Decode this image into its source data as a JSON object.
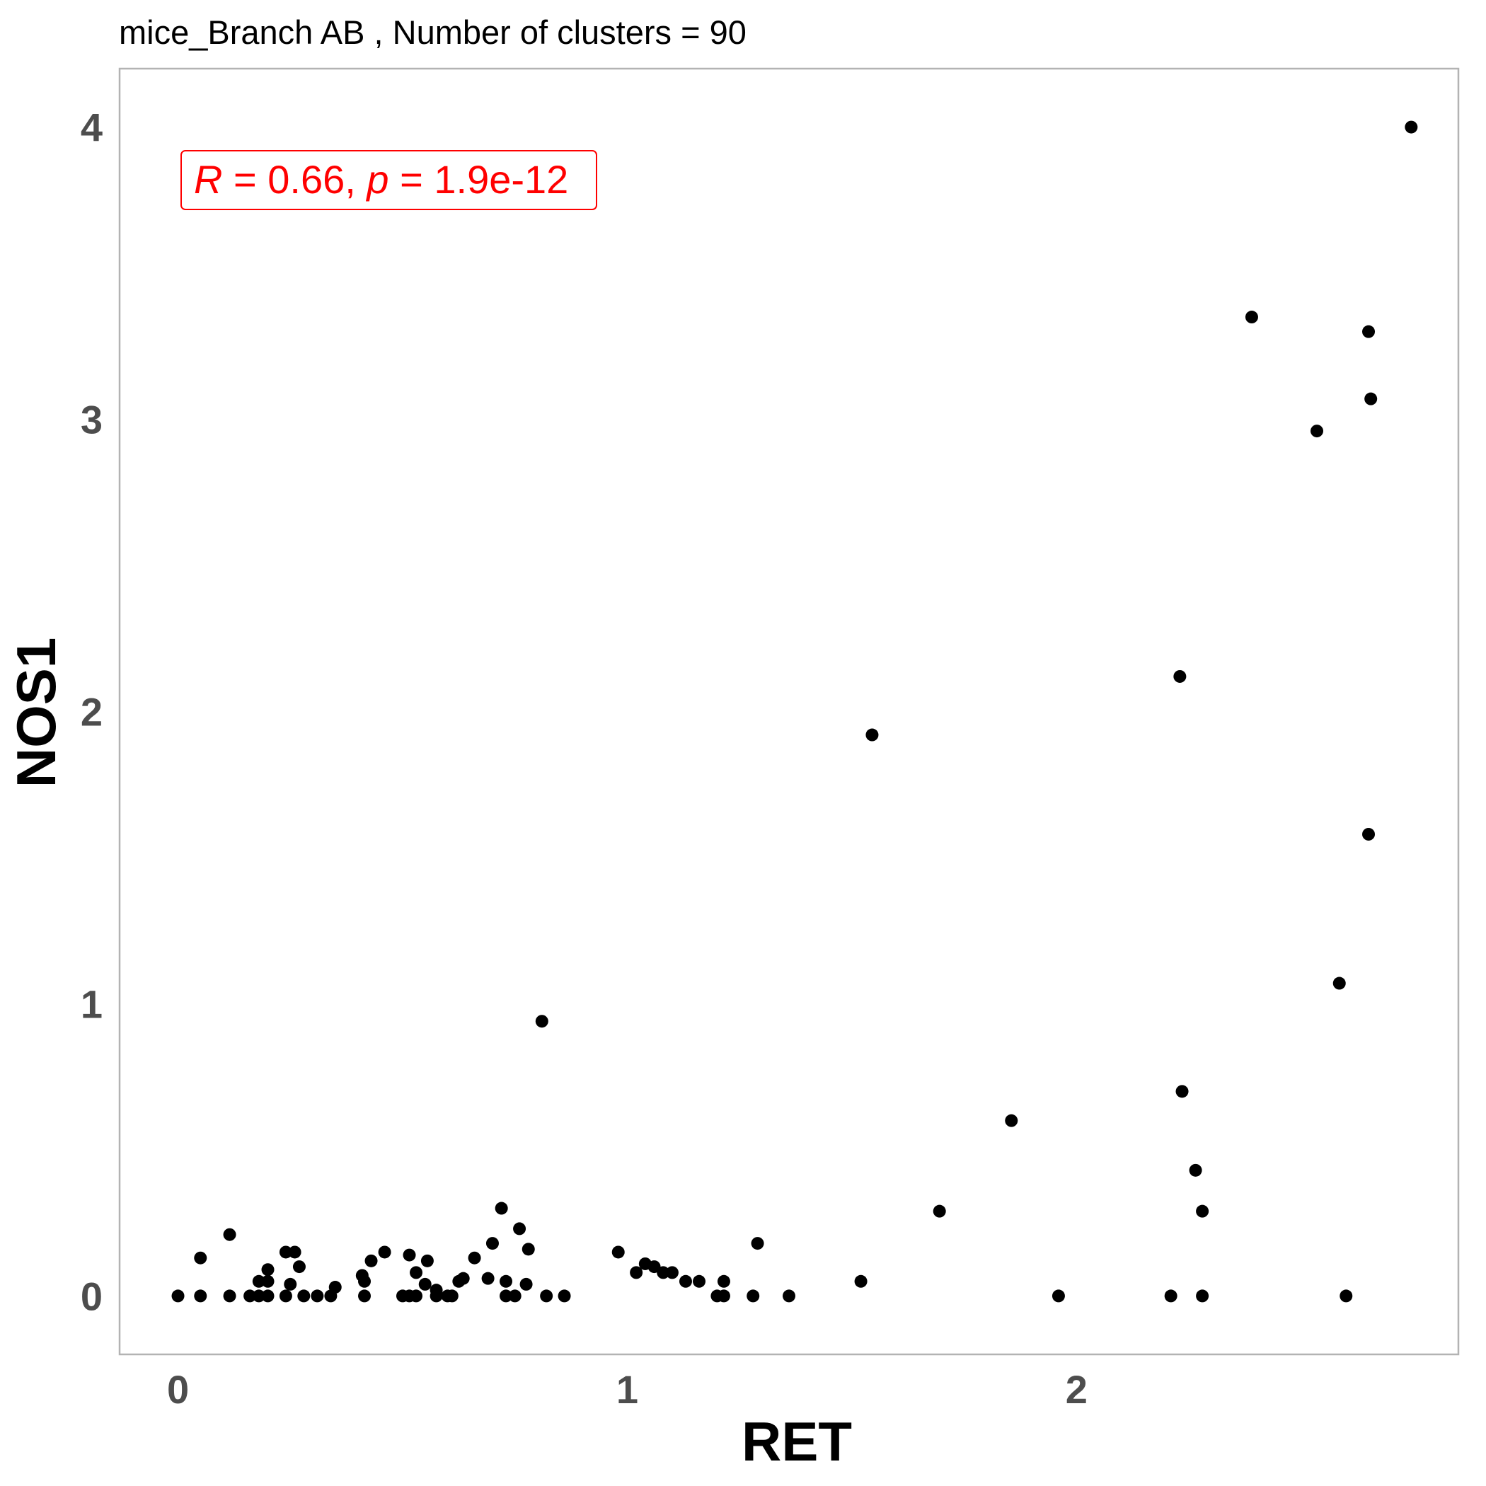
{
  "chart_data": {
    "type": "scatter",
    "title": "mice_Branch AB , Number of clusters =  90",
    "xlabel": "RET",
    "ylabel": "NOS1",
    "xlim": [
      -0.13,
      2.85
    ],
    "ylim": [
      -0.2,
      4.2
    ],
    "x_ticks": [
      0,
      1,
      2
    ],
    "y_ticks": [
      0,
      1,
      2,
      3,
      4
    ],
    "grid": false,
    "annotation": {
      "r_symbol": "R",
      "r_text": " = 0.66, ",
      "p_symbol": "p",
      "p_text": " = 1.9e-12",
      "color": "#ff0000"
    },
    "point_color": "#000000",
    "points": [
      [
        0.0,
        0.0
      ],
      [
        0.05,
        0.0
      ],
      [
        0.05,
        0.13
      ],
      [
        0.115,
        0.0
      ],
      [
        0.115,
        0.21
      ],
      [
        0.16,
        0.0
      ],
      [
        0.18,
        0.0
      ],
      [
        0.18,
        0.05
      ],
      [
        0.2,
        0.0
      ],
      [
        0.2,
        0.05
      ],
      [
        0.2,
        0.09
      ],
      [
        0.24,
        0.0
      ],
      [
        0.24,
        0.15
      ],
      [
        0.25,
        0.04
      ],
      [
        0.26,
        0.15
      ],
      [
        0.27,
        0.1
      ],
      [
        0.28,
        0.0
      ],
      [
        0.31,
        0.0
      ],
      [
        0.34,
        0.0
      ],
      [
        0.35,
        0.03
      ],
      [
        0.41,
        0.07
      ],
      [
        0.415,
        0.0
      ],
      [
        0.415,
        0.05
      ],
      [
        0.43,
        0.12
      ],
      [
        0.46,
        0.15
      ],
      [
        0.5,
        0.0
      ],
      [
        0.515,
        0.0
      ],
      [
        0.515,
        0.14
      ],
      [
        0.53,
        0.0
      ],
      [
        0.53,
        0.08
      ],
      [
        0.55,
        0.04
      ],
      [
        0.555,
        0.12
      ],
      [
        0.575,
        0.0
      ],
      [
        0.575,
        0.02
      ],
      [
        0.6,
        0.0
      ],
      [
        0.61,
        0.0
      ],
      [
        0.625,
        0.05
      ],
      [
        0.635,
        0.06
      ],
      [
        0.66,
        0.13
      ],
      [
        0.69,
        0.06
      ],
      [
        0.7,
        0.18
      ],
      [
        0.72,
        0.3
      ],
      [
        0.73,
        0.0
      ],
      [
        0.73,
        0.05
      ],
      [
        0.75,
        0.0
      ],
      [
        0.76,
        0.23
      ],
      [
        0.775,
        0.04
      ],
      [
        0.78,
        0.16
      ],
      [
        0.81,
        0.94
      ],
      [
        0.82,
        0.0
      ],
      [
        0.86,
        0.0
      ],
      [
        0.98,
        0.15
      ],
      [
        1.02,
        0.08
      ],
      [
        1.04,
        0.11
      ],
      [
        1.06,
        0.1
      ],
      [
        1.08,
        0.08
      ],
      [
        1.1,
        0.08
      ],
      [
        1.13,
        0.05
      ],
      [
        1.16,
        0.05
      ],
      [
        1.2,
        0.0
      ],
      [
        1.215,
        0.0
      ],
      [
        1.215,
        0.05
      ],
      [
        1.28,
        0.0
      ],
      [
        1.29,
        0.18
      ],
      [
        1.36,
        0.0
      ],
      [
        1.52,
        0.05
      ],
      [
        1.545,
        1.92
      ],
      [
        1.695,
        0.29
      ],
      [
        1.855,
        0.6
      ],
      [
        1.96,
        0.0
      ],
      [
        2.21,
        0.0
      ],
      [
        2.23,
        2.12
      ],
      [
        2.235,
        0.7
      ],
      [
        2.265,
        0.43
      ],
      [
        2.28,
        0.0
      ],
      [
        2.28,
        0.29
      ],
      [
        2.39,
        3.35
      ],
      [
        2.535,
        2.96
      ],
      [
        2.585,
        1.07
      ],
      [
        2.6,
        0.0
      ],
      [
        2.65,
        1.58
      ],
      [
        2.65,
        3.3
      ],
      [
        2.655,
        3.07
      ],
      [
        2.745,
        4.0
      ]
    ]
  }
}
